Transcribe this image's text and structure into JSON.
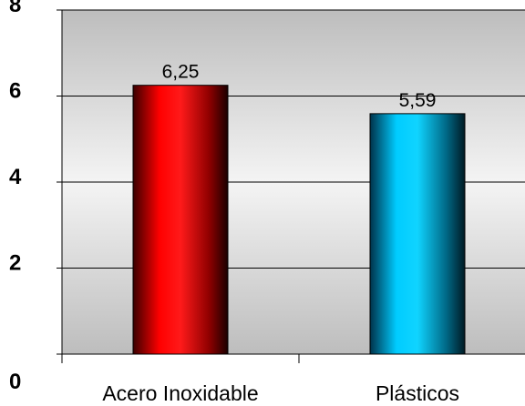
{
  "chart_data": {
    "type": "bar",
    "categories": [
      "Acero Inoxidable",
      "Plásticos"
    ],
    "values": [
      6.25,
      5.59
    ],
    "data_labels": [
      "6,25",
      "5,59"
    ],
    "ylim": [
      0,
      8
    ],
    "yticks": [
      "0",
      "2",
      "4",
      "6",
      "8"
    ],
    "grid": true,
    "legend": "none",
    "title": "",
    "xlabel": "",
    "ylabel": "",
    "colors": {
      "bar_1": "#ff0000",
      "bar_2": "#00ccff",
      "plot_bg": "#d0d0d0"
    }
  }
}
